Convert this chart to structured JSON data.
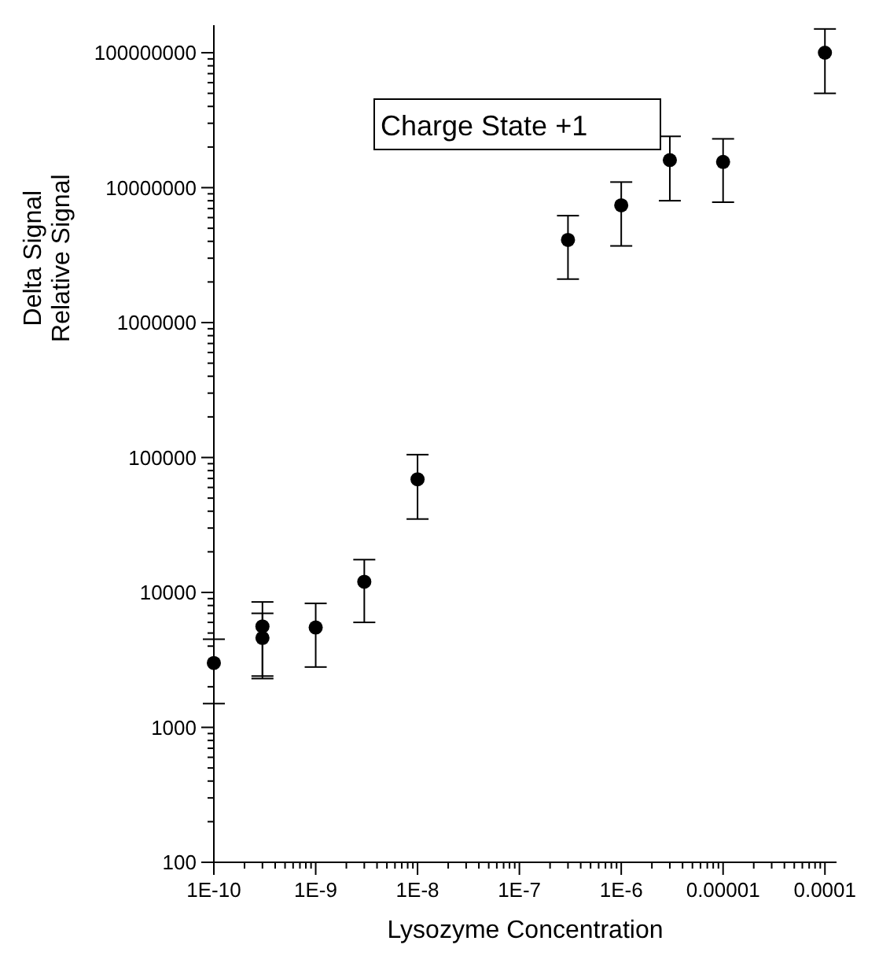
{
  "chart_data": {
    "type": "scatter",
    "xlabel": "Lysozyme Concentration",
    "ylabel": "Relative Signal",
    "log": "xy",
    "marker": "circle",
    "grid": false,
    "annotations": [
      "Charge State +1",
      "Delta Signal"
    ],
    "x": [
      1e-10,
      3e-10,
      3e-10,
      1e-09,
      3e-09,
      1e-08,
      3e-07,
      1e-06,
      3e-06,
      1e-05,
      0.0001
    ],
    "series": [
      {
        "color": "#000000",
        "values": [
          3000,
          5600,
          4600,
          5500,
          12000,
          69000,
          4100000,
          7400000,
          16000000,
          15500000,
          100000000
        ],
        "errors": [
          [
            1500,
            4500
          ],
          [
            2400,
            8500
          ],
          [
            2300,
            7000
          ],
          [
            2800,
            8300
          ],
          [
            6000,
            17500
          ],
          [
            35000,
            105000
          ],
          [
            2100000,
            6200000
          ],
          [
            3700000,
            11000000
          ],
          [
            8000000,
            24000000
          ],
          [
            7800000,
            23000000
          ],
          [
            50000000,
            150000000
          ]
        ]
      }
    ],
    "xlim": [
      1e-10,
      0.00013
    ],
    "ylim": [
      100,
      160000000
    ],
    "xticks": [
      {
        "value": 1e-10,
        "label": "1E-10"
      },
      {
        "value": 1e-09,
        "label": "1E-9"
      },
      {
        "value": 1e-08,
        "label": "1E-8"
      },
      {
        "value": 1e-07,
        "label": "1E-7"
      },
      {
        "value": 1e-06,
        "label": "1E-6"
      },
      {
        "value": 1e-05,
        "label": "0.00001"
      },
      {
        "value": 0.0001,
        "label": "0.0001"
      },
      {
        "value": 2e-10,
        "label": null
      },
      {
        "value": 3e-10,
        "label": null
      },
      {
        "value": 4e-10,
        "label": null
      },
      {
        "value": 5e-10,
        "label": null
      },
      {
        "value": 6e-10,
        "label": null
      },
      {
        "value": 7e-10,
        "label": null
      },
      {
        "value": 8e-10,
        "label": null
      },
      {
        "value": 9e-10,
        "label": null
      },
      {
        "value": 2e-09,
        "label": null
      },
      {
        "value": 3e-09,
        "label": null
      },
      {
        "value": 4e-09,
        "label": null
      },
      {
        "value": 5e-09,
        "label": null
      },
      {
        "value": 6e-09,
        "label": null
      },
      {
        "value": 7e-09,
        "label": null
      },
      {
        "value": 8e-09,
        "label": null
      },
      {
        "value": 9e-09,
        "label": null
      },
      {
        "value": 2e-08,
        "label": null
      },
      {
        "value": 3e-08,
        "label": null
      },
      {
        "value": 4e-08,
        "label": null
      },
      {
        "value": 5e-08,
        "label": null
      },
      {
        "value": 6e-08,
        "label": null
      },
      {
        "value": 7e-08,
        "label": null
      },
      {
        "value": 8e-08,
        "label": null
      },
      {
        "value": 9e-08,
        "label": null
      },
      {
        "value": 2e-07,
        "label": null
      },
      {
        "value": 3e-07,
        "label": null
      },
      {
        "value": 4e-07,
        "label": null
      },
      {
        "value": 5e-07,
        "label": null
      },
      {
        "value": 6e-07,
        "label": null
      },
      {
        "value": 7e-07,
        "label": null
      },
      {
        "value": 8e-07,
        "label": null
      },
      {
        "value": 9e-07,
        "label": null
      },
      {
        "value": 2e-06,
        "label": null
      },
      {
        "value": 3e-06,
        "label": null
      },
      {
        "value": 4e-06,
        "label": null
      },
      {
        "value": 5e-06,
        "label": null
      },
      {
        "value": 6e-06,
        "label": null
      },
      {
        "value": 7e-06,
        "label": null
      },
      {
        "value": 8e-06,
        "label": null
      },
      {
        "value": 9e-06,
        "label": null
      },
      {
        "value": 2e-05,
        "label": null
      },
      {
        "value": 3e-05,
        "label": null
      },
      {
        "value": 4e-05,
        "label": null
      },
      {
        "value": 5e-05,
        "label": null
      },
      {
        "value": 6e-05,
        "label": null
      },
      {
        "value": 7e-05,
        "label": null
      },
      {
        "value": 8e-05,
        "label": null
      },
      {
        "value": 9e-05,
        "label": null
      }
    ],
    "yticks": [
      100,
      1000,
      10000,
      100000,
      1000000,
      10000000,
      100000000,
      {
        "value": 200,
        "label": null
      },
      {
        "value": 300,
        "label": null
      },
      {
        "value": 400,
        "label": null
      },
      {
        "value": 500,
        "label": null
      },
      {
        "value": 600,
        "label": null
      },
      {
        "value": 700,
        "label": null
      },
      {
        "value": 800,
        "label": null
      },
      {
        "value": 900,
        "label": null
      },
      {
        "value": 2000,
        "label": null
      },
      {
        "value": 3000,
        "label": null
      },
      {
        "value": 4000,
        "label": null
      },
      {
        "value": 5000,
        "label": null
      },
      {
        "value": 6000,
        "label": null
      },
      {
        "value": 7000,
        "label": null
      },
      {
        "value": 8000,
        "label": null
      },
      {
        "value": 9000,
        "label": null
      },
      {
        "value": 20000,
        "label": null
      },
      {
        "value": 30000,
        "label": null
      },
      {
        "value": 40000,
        "label": null
      },
      {
        "value": 50000,
        "label": null
      },
      {
        "value": 60000,
        "label": null
      },
      {
        "value": 70000,
        "label": null
      },
      {
        "value": 80000,
        "label": null
      },
      {
        "value": 90000,
        "label": null
      },
      {
        "value": 200000,
        "label": null
      },
      {
        "value": 300000,
        "label": null
      },
      {
        "value": 400000,
        "label": null
      },
      {
        "value": 500000,
        "label": null
      },
      {
        "value": 600000,
        "label": null
      },
      {
        "value": 700000,
        "label": null
      },
      {
        "value": 800000,
        "label": null
      },
      {
        "value": 900000,
        "label": null
      },
      {
        "value": 2000000,
        "label": null
      },
      {
        "value": 3000000,
        "label": null
      },
      {
        "value": 4000000,
        "label": null
      },
      {
        "value": 5000000,
        "label": null
      },
      {
        "value": 6000000,
        "label": null
      },
      {
        "value": 7000000,
        "label": null
      },
      {
        "value": 8000000,
        "label": null
      },
      {
        "value": 9000000,
        "label": null
      },
      {
        "value": 20000000,
        "label": null
      },
      {
        "value": 30000000,
        "label": null
      },
      {
        "value": 40000000,
        "label": null
      },
      {
        "value": 50000000,
        "label": null
      },
      {
        "value": 60000000,
        "label": null
      },
      {
        "value": 70000000,
        "label": null
      },
      {
        "value": 80000000,
        "label": null
      },
      {
        "value": 90000000,
        "label": null
      }
    ]
  }
}
